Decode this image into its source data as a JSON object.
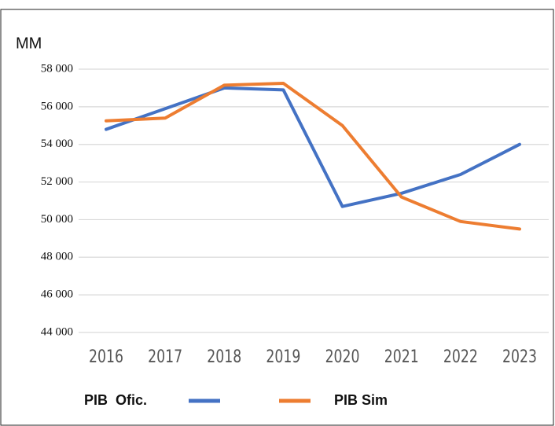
{
  "chart_data": {
    "type": "line",
    "y_label": "MM",
    "categories": [
      "2016",
      "2017",
      "2018",
      "2019",
      "2020",
      "2021",
      "2022",
      "2023"
    ],
    "series": [
      {
        "name": "PIB  Ofic.",
        "color": "#4472c4",
        "values": [
          54800,
          55900,
          57000,
          56900,
          50700,
          51400,
          52400,
          54000
        ]
      },
      {
        "name": "PIB Sim",
        "color": "#ed7d31",
        "values": [
          55250,
          55400,
          57150,
          57250,
          55000,
          51200,
          49900,
          49500
        ]
      }
    ],
    "ylim": [
      44000,
      58000
    ],
    "yticks": [
      {
        "value": 44000,
        "label": "44 000"
      },
      {
        "value": 46000,
        "label": "46 000"
      },
      {
        "value": 48000,
        "label": "48 000"
      },
      {
        "value": 50000,
        "label": "50 000"
      },
      {
        "value": 52000,
        "label": "52 000"
      },
      {
        "value": 54000,
        "label": "54 000"
      },
      {
        "value": 56000,
        "label": "56 000"
      },
      {
        "value": 58000,
        "label": "58 000"
      }
    ],
    "grid": true,
    "legend": "bottom"
  }
}
